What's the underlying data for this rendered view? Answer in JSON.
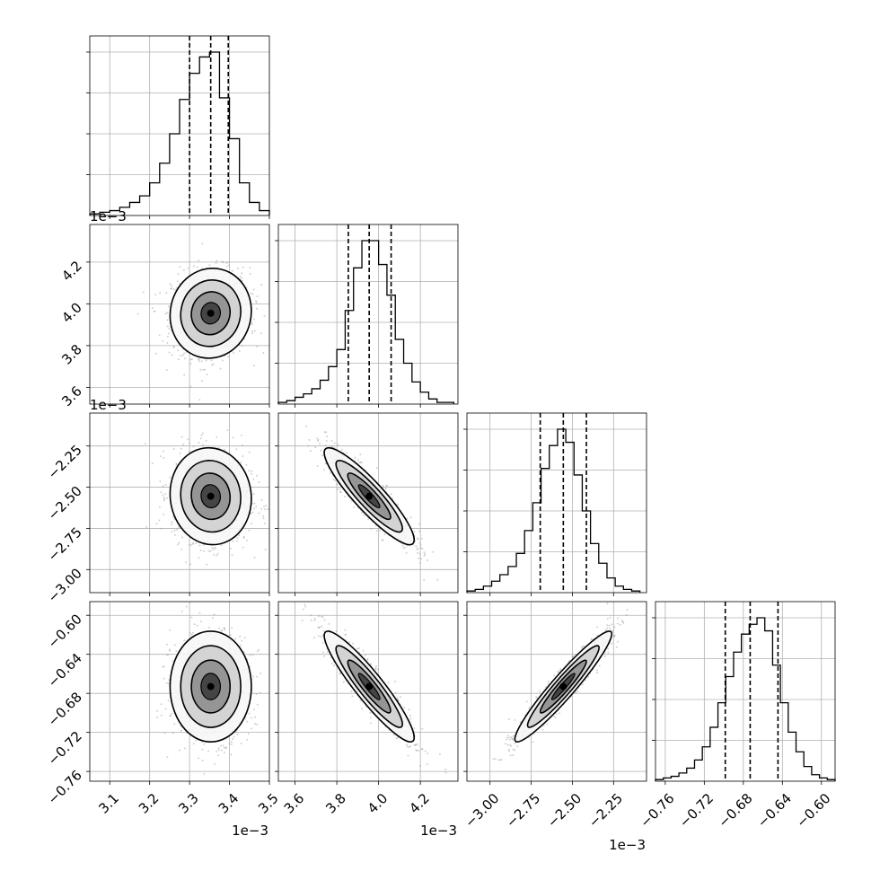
{
  "chart_data": {
    "type": "corner",
    "params": [
      {
        "offset_label": "1e−3",
        "range": [
          3.05,
          3.5
        ],
        "ticks": [
          3.1,
          3.2,
          3.3,
          3.4,
          3.5
        ],
        "tick_labels": [
          "3.1",
          "3.2",
          "3.3",
          "3.4",
          "3.5"
        ],
        "quantiles": [
          3.3,
          3.353,
          3.397
        ],
        "hist_bins": [
          3.05,
          3.075,
          3.1,
          3.125,
          3.15,
          3.175,
          3.2,
          3.225,
          3.25,
          3.275,
          3.3,
          3.325,
          3.35,
          3.375,
          3.4,
          3.425,
          3.45,
          3.475,
          3.5
        ],
        "hist_counts": [
          1,
          2,
          3,
          5,
          8,
          12,
          20,
          32,
          50,
          71,
          87,
          97,
          100,
          72,
          47,
          20,
          8,
          3
        ]
      },
      {
        "offset_label": "1e−3",
        "range": [
          3.52,
          4.38
        ],
        "ticks": [
          3.6,
          3.8,
          4.0,
          4.2
        ],
        "tick_labels": [
          "3.6",
          "3.8",
          "4.0",
          "4.2"
        ],
        "quantiles": [
          3.855,
          3.955,
          4.06
        ],
        "hist_bins": [
          3.52,
          3.56,
          3.6,
          3.64,
          3.68,
          3.72,
          3.76,
          3.8,
          3.84,
          3.88,
          3.92,
          3.96,
          4.0,
          4.04,
          4.08,
          4.12,
          4.16,
          4.2,
          4.24,
          4.28,
          4.32,
          4.36
        ],
        "hist_counts": [
          1,
          2,
          4,
          6,
          9,
          14,
          22,
          32,
          55,
          80,
          96,
          96,
          82,
          64,
          38,
          24,
          13,
          7,
          3,
          1,
          1
        ]
      },
      {
        "offset_label": "1e−3",
        "range": [
          -3.14,
          -2.05
        ],
        "ticks": [
          -3.0,
          -2.75,
          -2.5,
          -2.25
        ],
        "tick_labels": [
          "−3.00",
          "−2.75",
          "−2.50",
          "−2.25"
        ],
        "quantiles": [
          -2.695,
          -2.555,
          -2.415
        ],
        "hist_bins": [
          -3.14,
          -3.09,
          -3.04,
          -2.99,
          -2.94,
          -2.89,
          -2.84,
          -2.79,
          -2.74,
          -2.69,
          -2.64,
          -2.59,
          -2.54,
          -2.49,
          -2.44,
          -2.39,
          -2.34,
          -2.29,
          -2.24,
          -2.19,
          -2.14,
          -2.09
        ],
        "hist_counts": [
          1,
          2,
          4,
          7,
          11,
          16,
          24,
          38,
          55,
          76,
          90,
          100,
          92,
          72,
          50,
          30,
          18,
          9,
          4,
          2,
          1
        ]
      },
      {
        "offset_label": "",
        "range": [
          -0.77,
          -0.586
        ],
        "ticks": [
          -0.76,
          -0.72,
          -0.68,
          -0.64,
          -0.6
        ],
        "tick_labels": [
          "−0.76",
          "−0.72",
          "−0.68",
          "−0.64",
          "−0.60"
        ],
        "quantiles": [
          -0.6985,
          -0.673,
          -0.6445
        ],
        "hist_bins": [
          -0.77,
          -0.762,
          -0.754,
          -0.746,
          -0.738,
          -0.73,
          -0.722,
          -0.714,
          -0.706,
          -0.698,
          -0.69,
          -0.682,
          -0.674,
          -0.666,
          -0.658,
          -0.65,
          -0.642,
          -0.634,
          -0.626,
          -0.618,
          -0.61,
          -0.602,
          -0.594,
          -0.586
        ],
        "hist_counts": [
          1,
          2,
          3,
          5,
          8,
          13,
          21,
          33,
          48,
          64,
          79,
          90,
          96,
          100,
          92,
          71,
          48,
          30,
          18,
          9,
          4,
          2,
          1
        ]
      }
    ],
    "correlations": {
      "1-0": 0.05,
      "2-0": -0.05,
      "2-1": -0.9,
      "3-0": 0.0,
      "3-1": -0.92,
      "3-2": 0.95
    },
    "hist_color": "#000000",
    "contour_color": "#000000",
    "scatter_color": "#9a9a9a",
    "grid": true,
    "title": "",
    "xlabel": "",
    "ylabel": ""
  }
}
